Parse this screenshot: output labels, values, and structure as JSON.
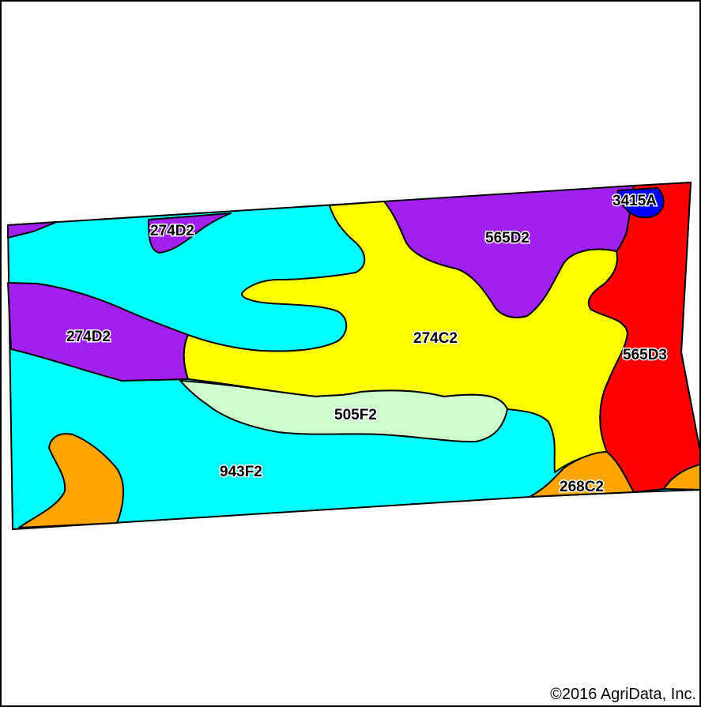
{
  "colors": {
    "cyan": "#00ffff",
    "yellow": "#ffff00",
    "purple": "#a020f0",
    "red": "#ff0000",
    "blue": "#0000ff",
    "orange": "#ffa500",
    "pale_green": "#ccffcc",
    "boundary": "#000000"
  },
  "map_units": [
    {
      "symbol": "274D2",
      "color": "purple"
    },
    {
      "symbol": "565D2",
      "color": "purple"
    },
    {
      "symbol": "3415A",
      "color": "blue"
    },
    {
      "symbol": "274D2",
      "color": "purple"
    },
    {
      "symbol": "274C2",
      "color": "yellow"
    },
    {
      "symbol": "565D3",
      "color": "red"
    },
    {
      "symbol": "505F2",
      "color": "pale_green"
    },
    {
      "symbol": "943F2",
      "color": "cyan"
    },
    {
      "symbol": "268C2",
      "color": "orange"
    }
  ],
  "copyright": "©2016 AgriData, Inc."
}
